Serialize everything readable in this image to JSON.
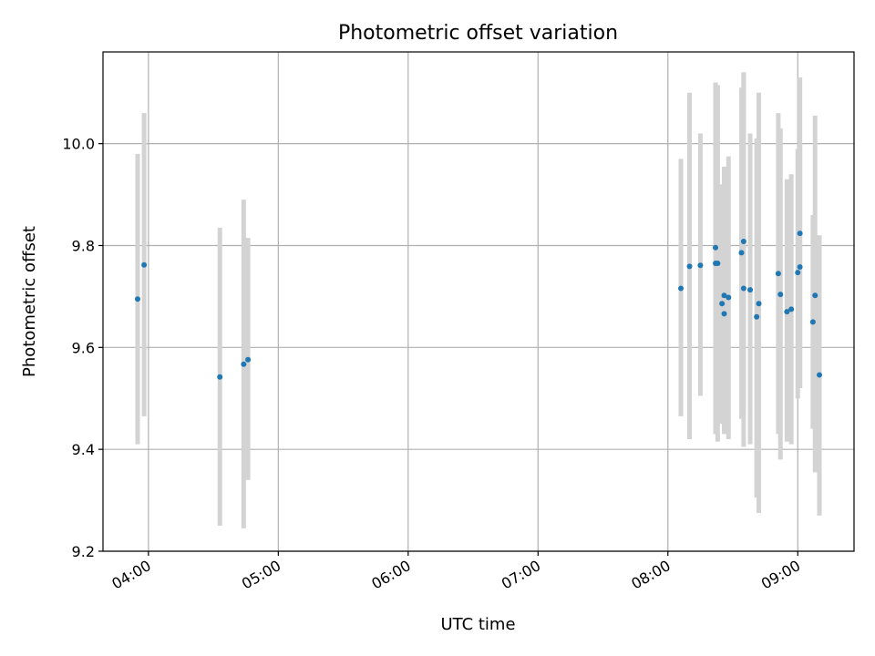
{
  "chart_data": {
    "type": "scatter",
    "title": "Photometric offset variation",
    "xlabel": "UTC time",
    "ylabel": "Photometric offset",
    "x_tick_labels": [
      "04:00",
      "05:00",
      "06:00",
      "07:00",
      "08:00",
      "09:00"
    ],
    "y_tick_labels": [
      "9.2",
      "9.4",
      "9.6",
      "9.8",
      "10.0"
    ],
    "x_ticks": [
      "04:00",
      "05:00",
      "06:00",
      "07:00",
      "08:00",
      "09:00"
    ],
    "y_ticks": [
      9.2,
      9.4,
      9.6,
      9.8,
      10.0
    ],
    "xlim": [
      "03:39",
      "09:26"
    ],
    "ylim": [
      9.2,
      10.18
    ],
    "grid": true,
    "colors": {
      "point": "#1f77b4",
      "errorbar": "#d3d3d3",
      "grid": "#b0b0b0",
      "axes": "#000000"
    },
    "points": [
      {
        "x": "03:55",
        "y": 9.695,
        "low": 9.41,
        "high": 9.98
      },
      {
        "x": "03:58",
        "y": 9.762,
        "low": 9.465,
        "high": 10.06
      },
      {
        "x": "04:33",
        "y": 9.542,
        "low": 9.25,
        "high": 9.835
      },
      {
        "x": "04:44",
        "y": 9.567,
        "low": 9.245,
        "high": 9.89
      },
      {
        "x": "04:46",
        "y": 9.576,
        "low": 9.34,
        "high": 9.815
      },
      {
        "x": "08:06",
        "y": 9.716,
        "low": 9.465,
        "high": 9.97
      },
      {
        "x": "08:10",
        "y": 9.759,
        "low": 9.42,
        "high": 10.1
      },
      {
        "x": "08:15",
        "y": 9.761,
        "low": 9.505,
        "high": 10.02
      },
      {
        "x": "08:22",
        "y": 9.796,
        "low": 9.43,
        "high": 10.12
      },
      {
        "x": "08:22",
        "y": 9.765,
        "low": 9.44,
        "high": 10.09
      },
      {
        "x": "08:23",
        "y": 9.765,
        "low": 9.415,
        "high": 10.115
      },
      {
        "x": "08:25",
        "y": 9.686,
        "low": 9.45,
        "high": 9.92
      },
      {
        "x": "08:26",
        "y": 9.666,
        "low": 9.445,
        "high": 9.935
      },
      {
        "x": "08:26",
        "y": 9.702,
        "low": 9.43,
        "high": 9.955
      },
      {
        "x": "08:28",
        "y": 9.698,
        "low": 9.42,
        "high": 9.975
      },
      {
        "x": "08:34",
        "y": 9.786,
        "low": 9.46,
        "high": 10.11
      },
      {
        "x": "08:35",
        "y": 9.716,
        "low": 9.405,
        "high": 10.14
      },
      {
        "x": "08:35",
        "y": 9.808,
        "low": 9.47,
        "high": 10.14
      },
      {
        "x": "08:38",
        "y": 9.713,
        "low": 9.41,
        "high": 10.02
      },
      {
        "x": "08:41",
        "y": 9.66,
        "low": 9.305,
        "high": 10.01
      },
      {
        "x": "08:42",
        "y": 9.686,
        "low": 9.275,
        "high": 10.1
      },
      {
        "x": "08:51",
        "y": 9.745,
        "low": 9.43,
        "high": 10.06
      },
      {
        "x": "08:52",
        "y": 9.704,
        "low": 9.38,
        "high": 10.03
      },
      {
        "x": "08:55",
        "y": 9.67,
        "low": 9.415,
        "high": 9.93
      },
      {
        "x": "08:57",
        "y": 9.675,
        "low": 9.41,
        "high": 9.94
      },
      {
        "x": "09:00",
        "y": 9.747,
        "low": 9.5,
        "high": 9.99
      },
      {
        "x": "09:01",
        "y": 9.758,
        "low": 9.52,
        "high": 10.0
      },
      {
        "x": "09:01",
        "y": 9.824,
        "low": 9.52,
        "high": 10.13
      },
      {
        "x": "09:07",
        "y": 9.65,
        "low": 9.44,
        "high": 9.86
      },
      {
        "x": "09:08",
        "y": 9.702,
        "low": 9.355,
        "high": 10.055
      },
      {
        "x": "09:10",
        "y": 9.546,
        "low": 9.27,
        "high": 9.82
      }
    ]
  }
}
